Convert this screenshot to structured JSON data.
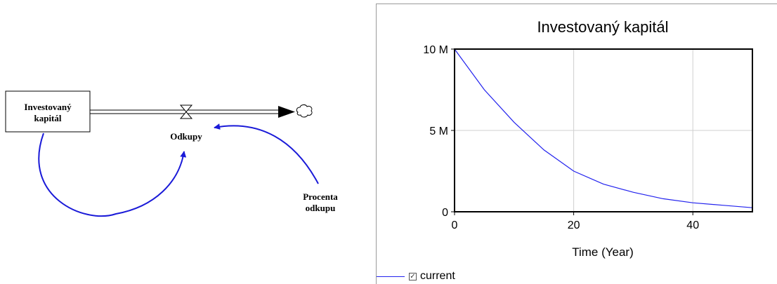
{
  "diagram": {
    "stock": {
      "label_line1": "Investovaný",
      "label_line2": "kapitál"
    },
    "flow": {
      "label": "Odkupy"
    },
    "auxiliary": {
      "label_line1": "Procenta",
      "label_line2": "odkupu"
    },
    "colors": {
      "link": "#1a1ad8",
      "pipe": "#000000"
    },
    "icons": [
      "valve-icon",
      "cloud-sink-icon"
    ]
  },
  "chart_data": {
    "type": "line",
    "title": "Investovaný kapitál",
    "xlabel": "Time (Year)",
    "ylabel": "",
    "xlim": [
      0,
      50
    ],
    "ylim": [
      0,
      10000000
    ],
    "x_ticks": [
      {
        "value": 0,
        "label": "0"
      },
      {
        "value": 20,
        "label": "20"
      },
      {
        "value": 40,
        "label": "40"
      }
    ],
    "y_ticks": [
      {
        "value": 0,
        "label": "0"
      },
      {
        "value": 5000000,
        "label": "5 M"
      },
      {
        "value": 10000000,
        "label": "10 M"
      }
    ],
    "grid": true,
    "legend": "bottom-left",
    "series": [
      {
        "name": "current",
        "color": "#2222ee",
        "x": [
          0,
          5,
          10,
          15,
          20,
          25,
          30,
          35,
          40,
          45,
          50
        ],
        "y": [
          10000000,
          7500000,
          5500000,
          3800000,
          2500000,
          1700000,
          1200000,
          800000,
          550000,
          400000,
          250000
        ]
      }
    ]
  }
}
